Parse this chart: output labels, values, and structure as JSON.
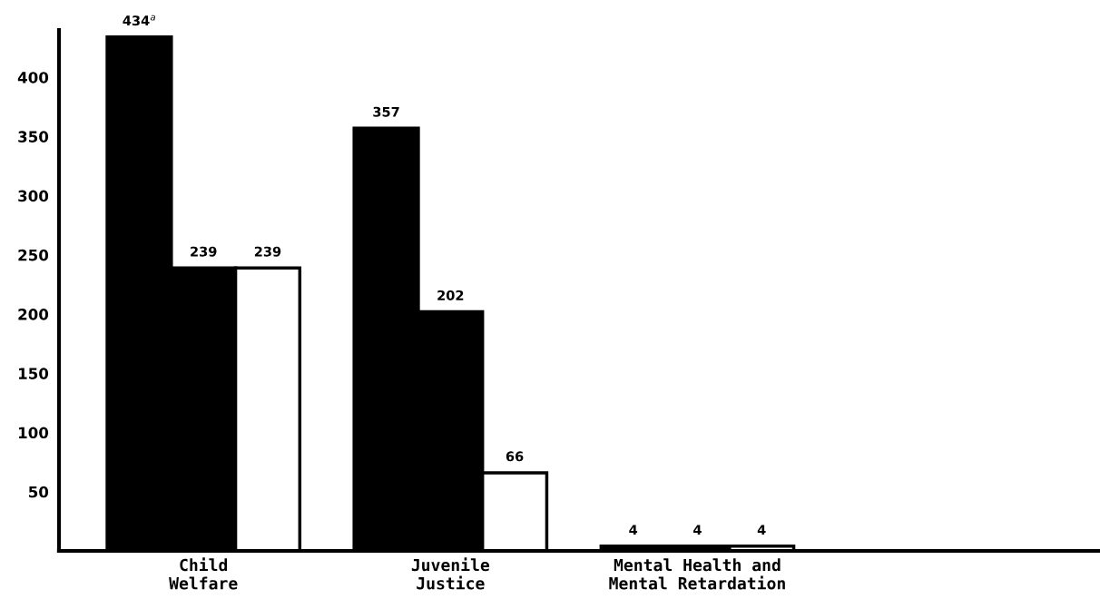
{
  "chart_data": {
    "type": "bar",
    "categories": [
      "Child\nWelfare",
      "Juvenile\nJustice",
      "Mental Health and\nMental Retardation"
    ],
    "series": [
      {
        "color": "#000000",
        "values": [
          434,
          357,
          4
        ],
        "value_labels": [
          "434$^{a}$",
          "357",
          "4"
        ]
      },
      {
        "color": "#000000",
        "values": [
          239,
          202,
          4
        ],
        "value_labels": [
          "239",
          "202",
          "4"
        ]
      },
      {
        "color": "#ffffff",
        "values": [
          239,
          66,
          4
        ],
        "value_labels": [
          "239",
          "66",
          "4"
        ]
      }
    ],
    "ylim": [
      0,
      440
    ],
    "yticks": [
      50,
      100,
      150,
      200,
      250,
      300,
      350,
      400
    ]
  }
}
